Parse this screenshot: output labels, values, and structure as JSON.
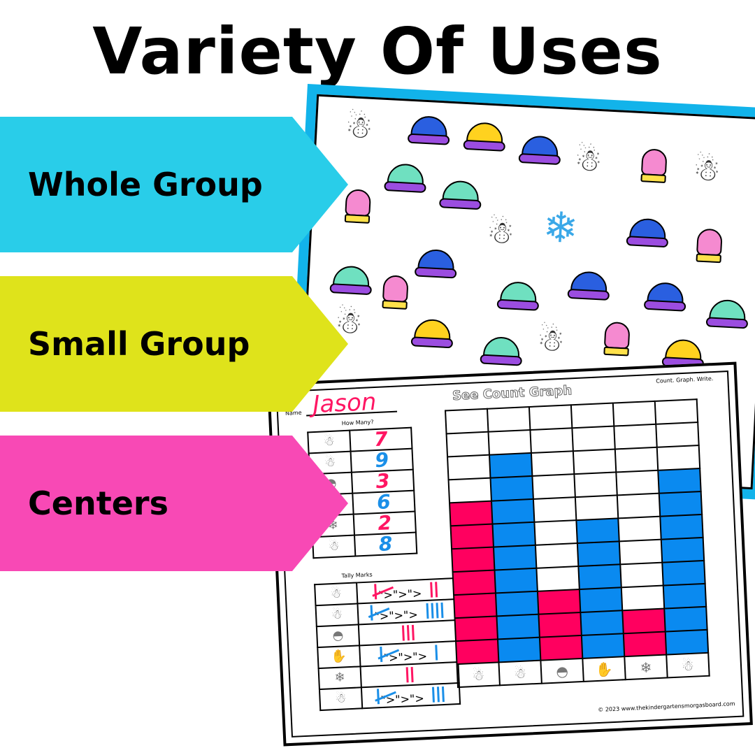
{
  "title": "Variety Of Uses",
  "banners": [
    {
      "label": "Whole Group",
      "color": "#29cde9"
    },
    {
      "label": "Small Group",
      "color": "#dfe31b"
    },
    {
      "label": "Centers",
      "color": "#f849b5"
    }
  ],
  "worksheet": {
    "title": "See Count Graph",
    "header": "Count. Graph. Write.",
    "name_label": "Name",
    "name_value": "Jason",
    "how_many_label": "How Many?",
    "tally_label": "Tally Marks",
    "copyright": "© 2023 www.thekindergartensmorgasboard.com",
    "items": [
      "snowman-icon",
      "snowman-hat-icon",
      "beanie-icon",
      "mitten-icon",
      "snowflake-icon",
      "snowman-hat-icon"
    ],
    "counts": [
      7,
      9,
      3,
      6,
      2,
      8
    ],
    "ink_colors": [
      "#ff1663",
      "#1a8fe8",
      "#ff1663",
      "#1a8fe8",
      "#ff1663",
      "#1a8fe8"
    ],
    "graph_rows": 11
  }
}
